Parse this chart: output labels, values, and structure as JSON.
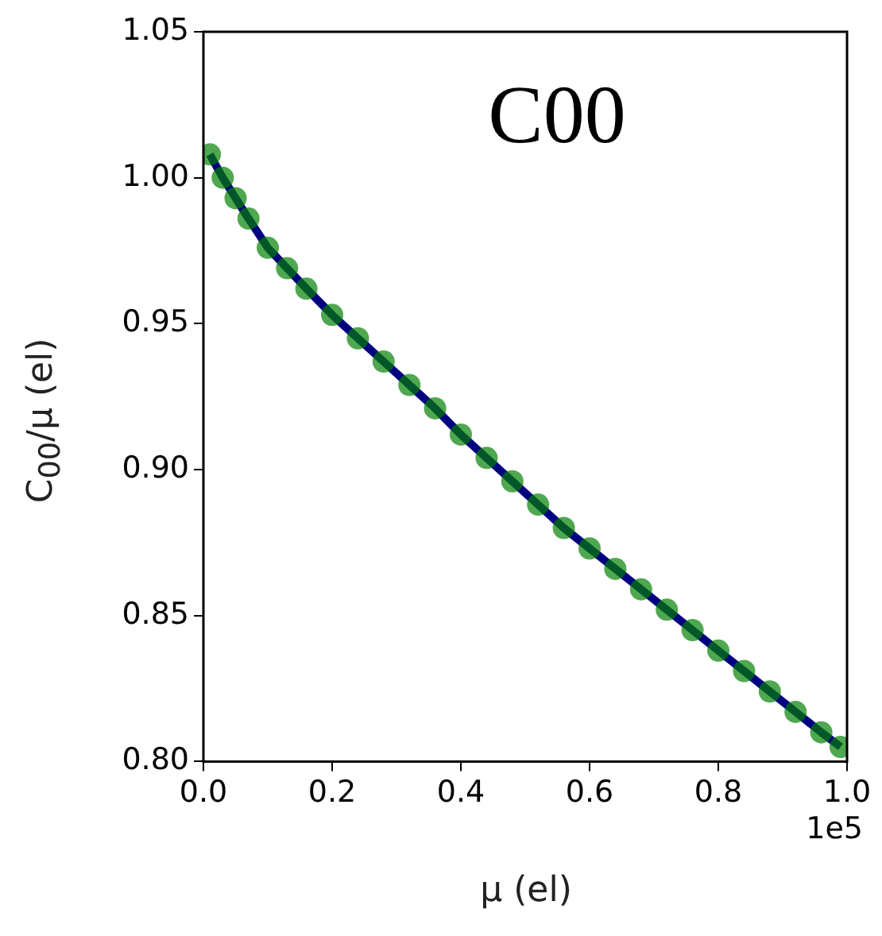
{
  "chart_data": {
    "type": "scatter",
    "xlabel": "μ (el)",
    "ylabel": "C$_{00}$/μ (el)",
    "annotations": [
      "C00",
      "1e5"
    ],
    "x": [
      0.01,
      0.03,
      0.05,
      0.07,
      0.1,
      0.13,
      0.16,
      0.2,
      0.24,
      0.28,
      0.32,
      0.36,
      0.4,
      0.44,
      0.48,
      0.52,
      0.56,
      0.6,
      0.64,
      0.68,
      0.72,
      0.76,
      0.8,
      0.84,
      0.88,
      0.92,
      0.96,
      0.99
    ],
    "series": [
      {
        "type": "line",
        "color": "#000080",
        "line_style": "solid",
        "marker": "none",
        "values": [
          1.008,
          1.0,
          0.993,
          0.986,
          0.976,
          0.969,
          0.962,
          0.953,
          0.945,
          0.937,
          0.929,
          0.921,
          0.912,
          0.904,
          0.896,
          0.888,
          0.88,
          0.873,
          0.866,
          0.859,
          0.852,
          0.845,
          0.838,
          0.831,
          0.824,
          0.817,
          0.81,
          0.805
        ]
      },
      {
        "color": "#008000",
        "marker": "circle",
        "values": [
          1.008,
          1.0,
          0.993,
          0.986,
          0.976,
          0.969,
          0.962,
          0.953,
          0.945,
          0.937,
          0.929,
          0.921,
          0.912,
          0.904,
          0.896,
          0.888,
          0.88,
          0.873,
          0.866,
          0.859,
          0.852,
          0.845,
          0.838,
          0.831,
          0.824,
          0.817,
          0.81,
          0.805
        ]
      }
    ],
    "grid": false,
    "legend": false,
    "xlim": [
      0,
      1
    ],
    "xticks": [
      {
        "value": 0,
        "label": "0.0"
      },
      0.2,
      0.4,
      0.6,
      0.8,
      {
        "value": 1,
        "label": "1.0"
      }
    ],
    "ylim": [
      0.8,
      1.05
    ],
    "yticks": [
      {
        "value": 0.8,
        "label": "0.80"
      },
      {
        "value": 0.85,
        "label": "0.85"
      },
      {
        "value": 0.9,
        "label": "0.90"
      },
      {
        "value": 0.95,
        "label": "0.95"
      },
      {
        "value": 1,
        "label": "1.00"
      },
      {
        "value": 1.05,
        "label": "1.05"
      }
    ]
  }
}
